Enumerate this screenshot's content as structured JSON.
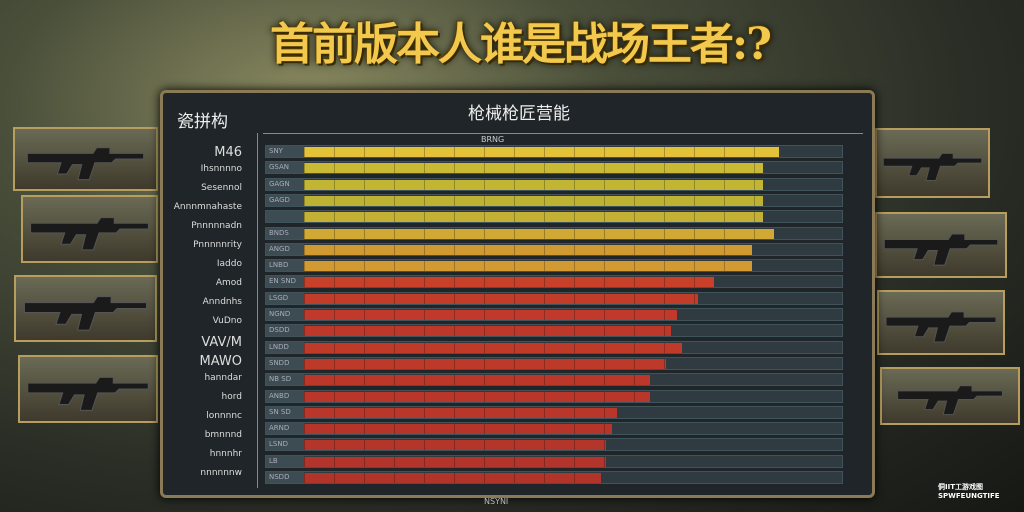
{
  "title": "首前版本人谁是战场王者:?",
  "panel": {
    "title": "枪械枪匠营能",
    "corner": "瓷拼构",
    "sub_label": "BRNG",
    "footer": "NSYNI"
  },
  "left_labels": [
    "M46",
    "Ihsnnnno",
    "Sesennol",
    "Annnmnahaste",
    "Pnnnnnadn",
    "Pnnnnnrity",
    "Iaddo",
    "Amod",
    "Anndnhs",
    "VuDno",
    "VAV/M",
    "MAWO",
    "hanndar",
    "hord",
    "lonnnnc",
    "bmnnnd",
    "hnnnhr",
    "nnnnnnw"
  ],
  "rows": [
    {
      "code": "SNY",
      "value": 0.88,
      "color": "#e3c23a"
    },
    {
      "code": "GSAN",
      "value": 0.85,
      "color": "#c9b934"
    },
    {
      "code": "GAGN",
      "value": 0.85,
      "color": "#c2b533"
    },
    {
      "code": "GAGD",
      "value": 0.85,
      "color": "#bdb232"
    },
    {
      "code": "",
      "value": 0.85,
      "color": "#c4b034"
    },
    {
      "code": "BNDS",
      "value": 0.87,
      "color": "#d1a833"
    },
    {
      "code": "ANGD",
      "value": 0.83,
      "color": "#d09a30"
    },
    {
      "code": "LNBD",
      "value": 0.83,
      "color": "#d49a32"
    },
    {
      "code": "EN SND",
      "value": 0.76,
      "color": "#c8402a"
    },
    {
      "code": "LSGD",
      "value": 0.73,
      "color": "#c23c2a"
    },
    {
      "code": "NGND",
      "value": 0.69,
      "color": "#c0392a"
    },
    {
      "code": "DSDD",
      "value": 0.68,
      "color": "#be382a"
    },
    {
      "code": "LNDD",
      "value": 0.7,
      "color": "#c03a2a"
    },
    {
      "code": "SNDD",
      "value": 0.67,
      "color": "#bd392a"
    },
    {
      "code": "NB SD",
      "value": 0.64,
      "color": "#bb372a"
    },
    {
      "code": "ANBD",
      "value": 0.64,
      "color": "#ba362a"
    },
    {
      "code": "SN SD",
      "value": 0.58,
      "color": "#b8362a"
    },
    {
      "code": "ARND",
      "value": 0.57,
      "color": "#b6352a"
    },
    {
      "code": "LSND",
      "value": 0.56,
      "color": "#b4352a"
    },
    {
      "code": "LB",
      "value": 0.56,
      "color": "#b2342a"
    },
    {
      "code": "NSDD",
      "value": 0.55,
      "color": "#b0342a"
    }
  ],
  "watermark": [
    "侗IIT工游戏图",
    "SPWFEUNGTIFE"
  ],
  "colors": {
    "accent": "#f2c94c",
    "panel": "#1f2528",
    "frame": "#8a7a55"
  }
}
